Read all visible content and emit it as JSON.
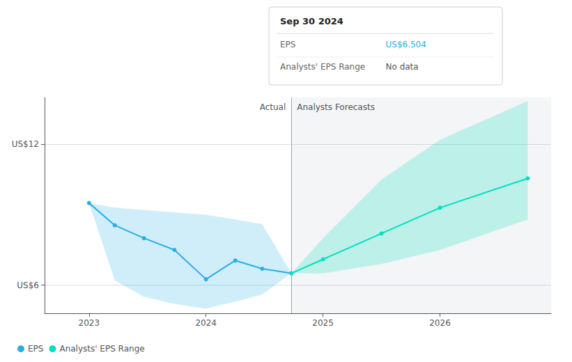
{
  "chart_data": {
    "type": "line",
    "xlim": [
      2022.62,
      2026.95
    ],
    "xticks": [
      2023,
      2024,
      2025,
      2026
    ],
    "ylim": [
      4.8,
      14.0
    ],
    "yticks": [
      {
        "value": 6,
        "label": "US$6"
      },
      {
        "value": 12,
        "label": "US$12"
      }
    ],
    "grid": true,
    "legend": "lower left",
    "series": [
      {
        "name": "EPS",
        "color": "#29aee6",
        "x": [
          2023.0,
          2023.22,
          2023.47,
          2023.73,
          2024.0,
          2024.25,
          2024.48,
          2024.73
        ],
        "values": [
          9.5,
          8.55,
          8.0,
          7.5,
          6.25,
          7.05,
          6.7,
          6.504
        ],
        "range_lower": [
          9.5,
          6.2,
          5.5,
          5.2,
          5.0,
          5.3,
          5.6,
          6.504
        ],
        "range_upper": [
          9.5,
          9.3,
          9.2,
          9.1,
          9.0,
          8.8,
          8.6,
          6.504
        ]
      },
      {
        "name": "Analysts' EPS Range",
        "color": "#00e0c0",
        "x": [
          2024.73,
          2025.0,
          2025.5,
          2026.0,
          2026.75
        ],
        "values": [
          6.504,
          7.1,
          8.2,
          9.3,
          10.55
        ],
        "range_lower": [
          6.504,
          6.5,
          6.9,
          7.5,
          8.8
        ],
        "range_upper": [
          6.504,
          8.0,
          10.5,
          12.2,
          13.85
        ]
      }
    ],
    "divider": {
      "x": 2024.73,
      "labels": [
        "Actual",
        "Analysts Forecasts"
      ]
    },
    "tooltip": {
      "title": "Sep 30 2024",
      "rows": [
        {
          "label": "EPS",
          "value": "US$6.504"
        },
        {
          "label": "Analysts' EPS Range",
          "value": "No data"
        }
      ]
    }
  }
}
